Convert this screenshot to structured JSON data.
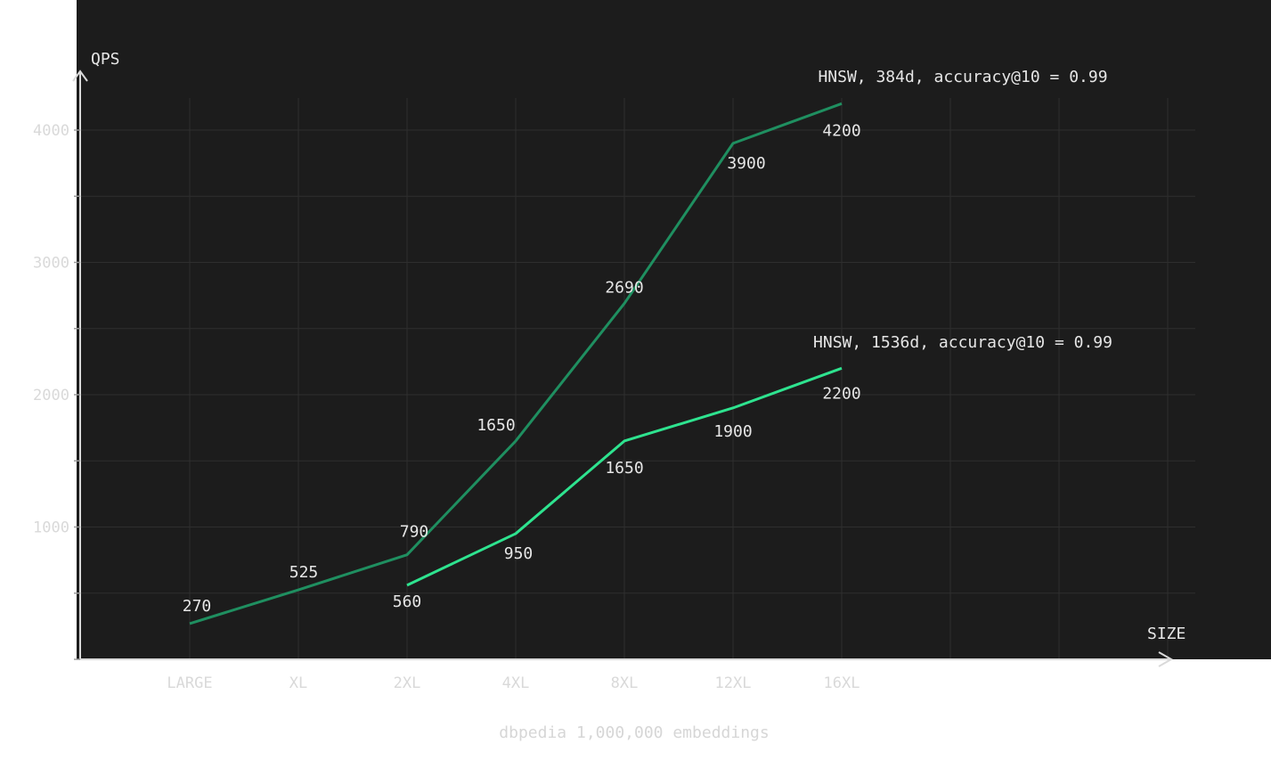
{
  "chart_data": {
    "type": "line",
    "categories": [
      "LARGE",
      "XL",
      "2XL",
      "4XL",
      "8XL",
      "12XL",
      "16XL"
    ],
    "series": [
      {
        "name": "HNSW, 384d, accuracy@10 = 0.99",
        "values": [
          270,
          525,
          790,
          1650,
          2690,
          3900,
          4200
        ],
        "color": "#1f8f60"
      },
      {
        "name": "HNSW, 1536d, accuracy@10 = 0.99",
        "values": [
          null,
          null,
          560,
          950,
          1650,
          1900,
          2200
        ],
        "color": "#2ee38f"
      }
    ],
    "xlabel": "SIZE",
    "ylabel": "QPS",
    "yticks": [
      1000,
      2000,
      3000,
      4000
    ],
    "ylim": [
      0,
      4500
    ],
    "caption": "dbpedia 1,000,000 embeddings",
    "background": "#1c1c1c",
    "grid": true
  }
}
